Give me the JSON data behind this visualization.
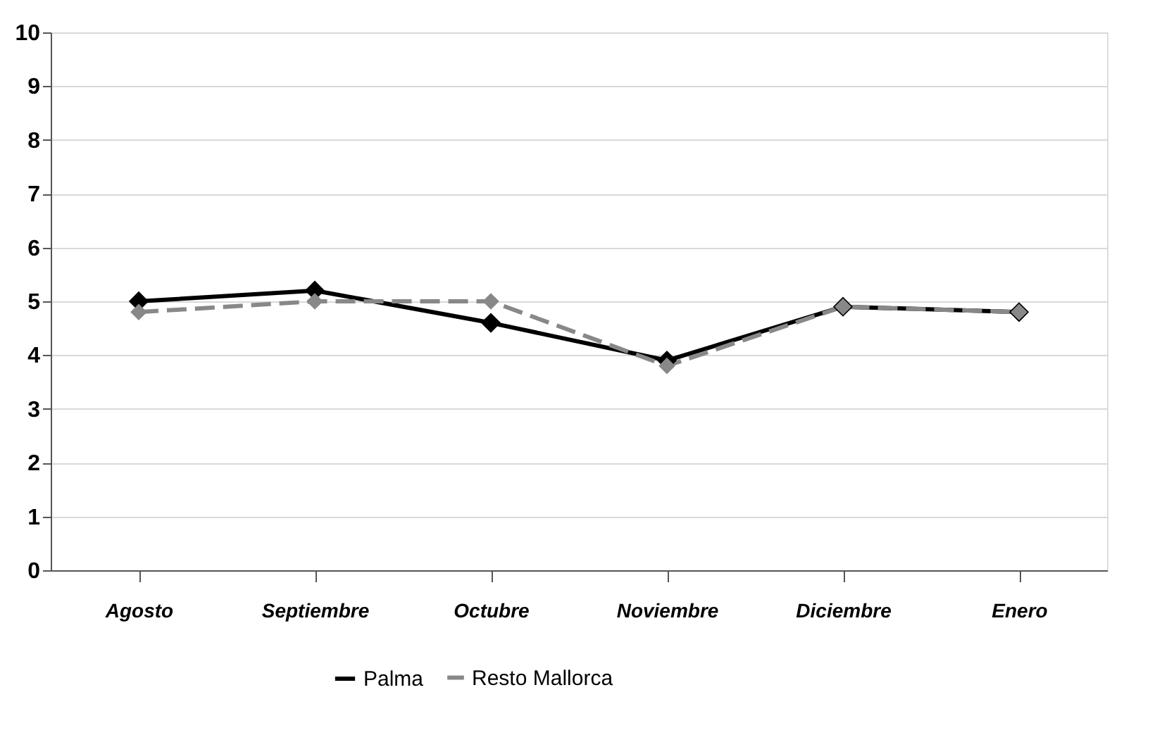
{
  "chart_data": {
    "type": "line",
    "categories": [
      "Agosto",
      "Septiembre",
      "Octubre",
      "Noviembre",
      "Diciembre",
      "Enero"
    ],
    "series": [
      {
        "name": "Palma",
        "color": "#000000",
        "values": [
          5.0,
          5.2,
          4.6,
          3.9,
          4.9,
          4.8
        ],
        "line_style": "solid"
      },
      {
        "name": "Resto Mallorca",
        "color": "#888888",
        "values": [
          4.8,
          5.0,
          5.0,
          3.8,
          4.9,
          4.8
        ],
        "line_style": "dashed"
      }
    ],
    "ylim": [
      0,
      10
    ],
    "yticks": [
      0,
      1,
      2,
      3,
      4,
      5,
      6,
      7,
      8,
      9,
      10
    ],
    "grid": "y",
    "legend": "bottom",
    "marker": "diamond"
  }
}
